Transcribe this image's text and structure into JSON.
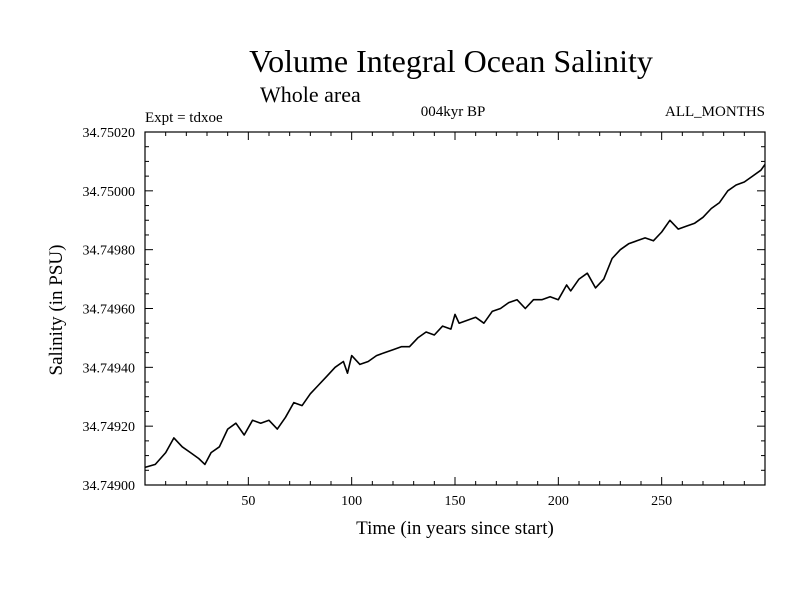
{
  "chart_data": {
    "type": "line",
    "title": "Volume Integral Ocean Salinity",
    "subtitle": "Whole area",
    "annotations": {
      "experiment": "Expt = tdxoe",
      "period": "004kyr BP",
      "season": "ALL_MONTHS"
    },
    "xlabel": "Time (in years since start)",
    "ylabel": "Salinity (in PSU)",
    "xlim": [
      0,
      300
    ],
    "ylim": [
      34.749,
      34.7502
    ],
    "xticks": [
      "50",
      "100",
      "150",
      "200",
      "250"
    ],
    "yticks": [
      "34.74900",
      "34.74920",
      "34.74940",
      "34.74960",
      "34.74980",
      "34.75000",
      "34.75020"
    ],
    "grid": false,
    "series": [
      {
        "x": [
          0,
          5,
          10,
          14,
          18,
          22,
          26,
          29,
          32,
          36,
          40,
          44,
          48,
          52,
          56,
          60,
          64,
          68,
          72,
          76,
          80,
          84,
          88,
          92,
          96,
          98,
          100,
          104,
          108,
          112,
          116,
          120,
          124,
          128,
          132,
          136,
          140,
          144,
          148,
          150,
          152,
          156,
          160,
          164,
          168,
          172,
          176,
          180,
          184,
          188,
          192,
          196,
          200,
          204,
          206,
          210,
          214,
          218,
          222,
          226,
          230,
          234,
          238,
          242,
          246,
          250,
          254,
          258,
          262,
          266,
          270,
          274,
          278,
          282,
          286,
          290,
          294,
          298,
          300
        ],
        "values": [
          34.74906,
          34.74907,
          34.74911,
          34.74916,
          34.74913,
          34.74911,
          34.74909,
          34.74907,
          34.74911,
          34.74913,
          34.74919,
          34.74921,
          34.74917,
          34.74922,
          34.74921,
          34.74922,
          34.74919,
          34.74923,
          34.74928,
          34.74927,
          34.74931,
          34.74934,
          34.74937,
          34.7494,
          34.74942,
          34.74938,
          34.74944,
          34.74941,
          34.74942,
          34.74944,
          34.74945,
          34.74946,
          34.74947,
          34.74947,
          34.7495,
          34.74952,
          34.74951,
          34.74954,
          34.74953,
          34.74958,
          34.74955,
          34.74956,
          34.74957,
          34.74955,
          34.74959,
          34.7496,
          34.74962,
          34.74963,
          34.7496,
          34.74963,
          34.74963,
          34.74964,
          34.74963,
          34.74968,
          34.74966,
          34.7497,
          34.74972,
          34.74967,
          34.7497,
          34.74977,
          34.7498,
          34.74982,
          34.74983,
          34.74984,
          34.74983,
          34.74986,
          34.7499,
          34.74987,
          34.74988,
          34.74989,
          34.74991,
          34.74994,
          34.74996,
          34.75,
          34.75002,
          34.75003,
          34.75005,
          34.75007,
          34.75009
        ]
      }
    ]
  }
}
